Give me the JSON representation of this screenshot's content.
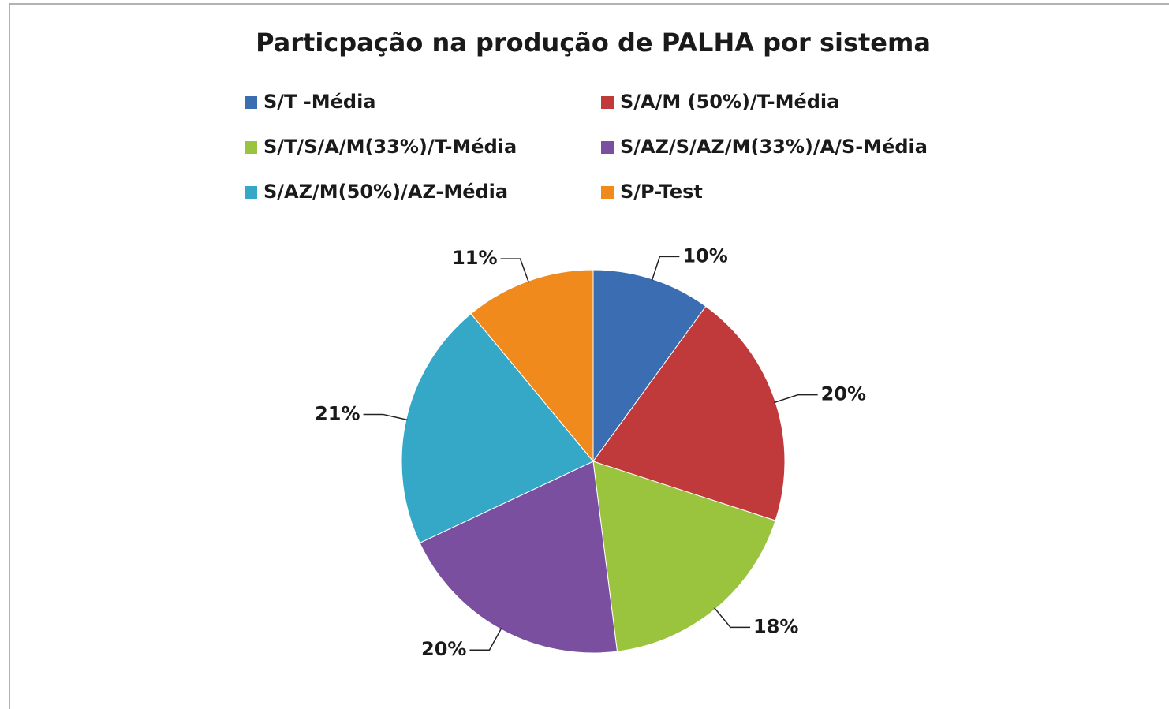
{
  "chart_data": {
    "type": "pie",
    "title": "Particpação na produção de PALHA por sistema",
    "categories": [
      "S/T -Média",
      "S/A/M (50%)/T-Média",
      "S/T/S/A/M(33%)/T-Média",
      "S/AZ/S/AZ/M(33%)/A/S-Média",
      "S/AZ/M(50%)/AZ-Média",
      "S/P-Test"
    ],
    "values": [
      10,
      20,
      18,
      20,
      21,
      11
    ],
    "value_labels": [
      "10%",
      "20%",
      "18%",
      "20%",
      "21%",
      "11%"
    ],
    "colors": [
      "#3b6db3",
      "#c0393b",
      "#9ac43e",
      "#7a4f9f",
      "#35a8c8",
      "#f08a1d"
    ],
    "legend": "top"
  }
}
